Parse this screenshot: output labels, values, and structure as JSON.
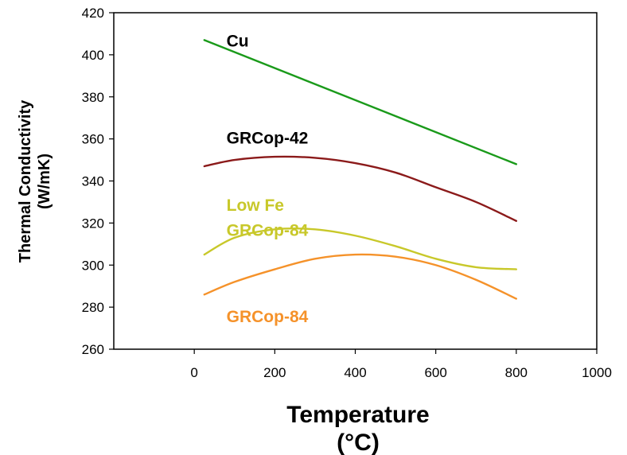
{
  "chart_data": {
    "type": "line",
    "title": "",
    "xlabel": "Temperature",
    "xlabel_unit": "(°C)",
    "ylabel": "Thermal Conductivity",
    "ylabel_unit": "(W/mK)",
    "xlim": [
      -200,
      1000
    ],
    "ylim": [
      260,
      420
    ],
    "x_ticks": [
      0,
      200,
      400,
      600,
      800,
      1000
    ],
    "y_ticks": [
      260,
      280,
      300,
      320,
      340,
      360,
      380,
      400,
      420
    ],
    "grid": false,
    "series": [
      {
        "name": "Cu",
        "label_lines": [
          "Cu"
        ],
        "color": "#1a9a1a",
        "x": [
          25,
          800
        ],
        "y": [
          407,
          348
        ]
      },
      {
        "name": "GRCop-42",
        "label_lines": [
          "GRCop-42"
        ],
        "color": "#8b1a1a",
        "x": [
          25,
          100,
          200,
          300,
          400,
          500,
          600,
          700,
          800
        ],
        "y": [
          347,
          350,
          351.5,
          351,
          348.5,
          344,
          337,
          330,
          321
        ]
      },
      {
        "name": "Low Fe GRCop-84",
        "label_lines": [
          "Low Fe",
          "GRCop-84"
        ],
        "color": "#c8c82a",
        "x": [
          25,
          100,
          200,
          300,
          400,
          500,
          600,
          700,
          800
        ],
        "y": [
          305,
          313,
          317,
          317,
          314,
          309,
          303,
          299,
          298
        ]
      },
      {
        "name": "GRCop-84",
        "label_lines": [
          "GRCop-84"
        ],
        "color": "#f5922a",
        "x": [
          25,
          100,
          200,
          300,
          400,
          500,
          600,
          700,
          800
        ],
        "y": [
          286,
          292,
          298,
          303,
          305,
          304,
          300,
          293,
          284
        ]
      }
    ]
  }
}
